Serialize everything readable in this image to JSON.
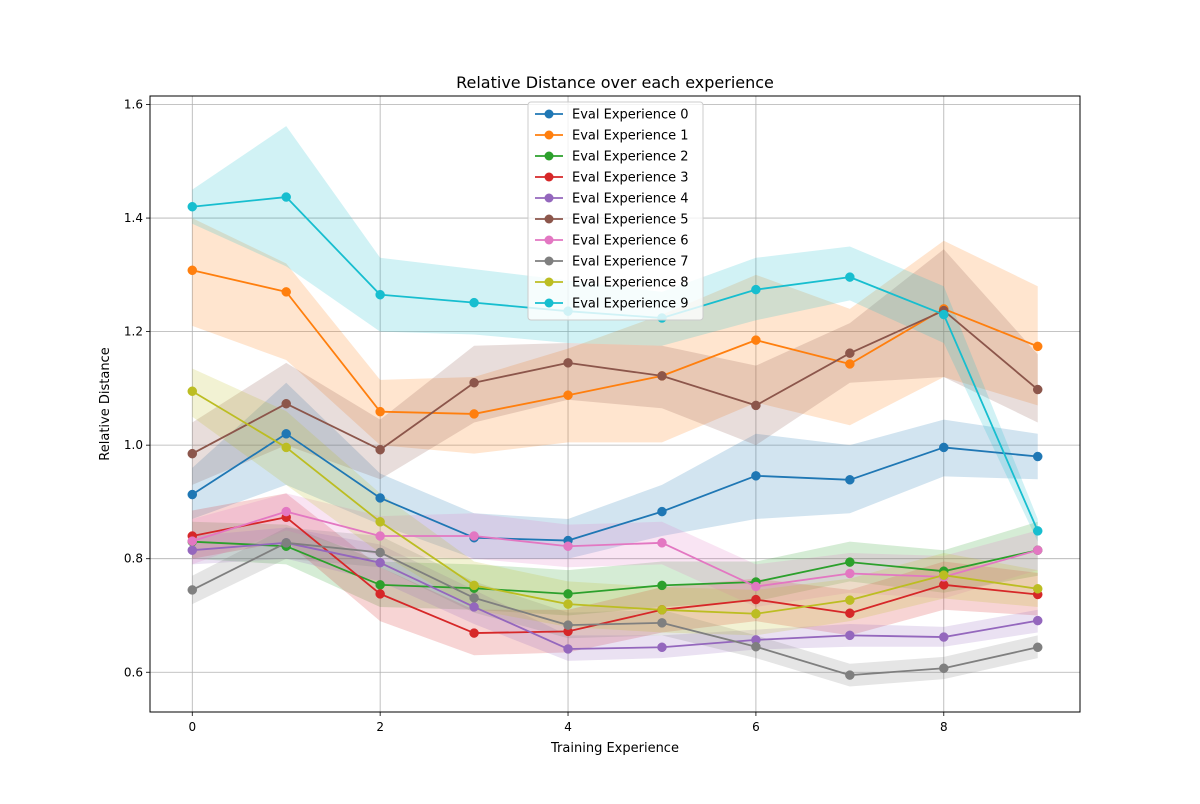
{
  "chart_data": {
    "type": "line",
    "title": "Relative Distance over each experience",
    "xlabel": "Training Experience",
    "ylabel": "Relative Distance",
    "xlim": [
      -0.45,
      9.45
    ],
    "ylim": [
      0.53,
      1.615
    ],
    "x_ticks": [
      0,
      2,
      4,
      6,
      8
    ],
    "y_ticks": [
      0.6,
      0.8,
      1.0,
      1.2,
      1.4,
      1.6
    ],
    "x_tick_labels": [
      "0",
      "2",
      "4",
      "6",
      "8"
    ],
    "y_tick_labels": [
      "0.6",
      "0.8",
      "1.0",
      "1.2",
      "1.4",
      "1.6"
    ],
    "grid": true,
    "legend_position": "top-center",
    "x": [
      0,
      1,
      2,
      3,
      4,
      5,
      6,
      7,
      8,
      9
    ],
    "series": [
      {
        "name": "Eval Experience 0",
        "color": "#1f77b4",
        "values": [
          0.913,
          1.02,
          0.907,
          0.837,
          0.832,
          0.883,
          0.946,
          0.939,
          0.996,
          0.98
        ],
        "lower": [
          0.87,
          0.93,
          0.86,
          0.8,
          0.8,
          0.84,
          0.87,
          0.88,
          0.945,
          0.94
        ],
        "upper": [
          0.96,
          1.11,
          0.95,
          0.88,
          0.87,
          0.93,
          1.02,
          1.0,
          1.045,
          1.02
        ]
      },
      {
        "name": "Eval Experience 1",
        "color": "#ff7f0e",
        "values": [
          1.308,
          1.27,
          1.059,
          1.055,
          1.088,
          1.122,
          1.185,
          1.143,
          1.24,
          1.174
        ],
        "lower": [
          1.21,
          1.15,
          1.0,
          0.985,
          1.005,
          1.005,
          1.075,
          1.035,
          1.12,
          1.07
        ],
        "upper": [
          1.4,
          1.32,
          1.115,
          1.12,
          1.17,
          1.23,
          1.3,
          1.24,
          1.36,
          1.28
        ]
      },
      {
        "name": "Eval Experience 2",
        "color": "#2ca02c",
        "values": [
          0.83,
          0.822,
          0.754,
          0.748,
          0.738,
          0.753,
          0.759,
          0.794,
          0.778,
          0.815
        ],
        "lower": [
          0.8,
          0.79,
          0.715,
          0.71,
          0.7,
          0.715,
          0.725,
          0.76,
          0.74,
          0.77
        ],
        "upper": [
          0.865,
          0.86,
          0.795,
          0.79,
          0.78,
          0.795,
          0.795,
          0.83,
          0.815,
          0.865
        ]
      },
      {
        "name": "Eval Experience 3",
        "color": "#d62728",
        "values": [
          0.84,
          0.873,
          0.738,
          0.669,
          0.672,
          0.71,
          0.728,
          0.704,
          0.754,
          0.737
        ],
        "lower": [
          0.8,
          0.83,
          0.69,
          0.63,
          0.635,
          0.67,
          0.69,
          0.665,
          0.71,
          0.7
        ],
        "upper": [
          0.885,
          0.915,
          0.785,
          0.71,
          0.71,
          0.75,
          0.765,
          0.745,
          0.795,
          0.775
        ]
      },
      {
        "name": "Eval Experience 4",
        "color": "#9467bd",
        "values": [
          0.815,
          0.828,
          0.793,
          0.715,
          0.641,
          0.644,
          0.657,
          0.665,
          0.662,
          0.691
        ],
        "lower": [
          0.79,
          0.8,
          0.76,
          0.685,
          0.62,
          0.625,
          0.64,
          0.645,
          0.645,
          0.67
        ],
        "upper": [
          0.84,
          0.855,
          0.825,
          0.745,
          0.665,
          0.665,
          0.675,
          0.685,
          0.68,
          0.71
        ]
      },
      {
        "name": "Eval Experience 5",
        "color": "#8c564b",
        "values": [
          0.985,
          1.073,
          0.992,
          1.11,
          1.145,
          1.122,
          1.07,
          1.162,
          1.237,
          1.098
        ],
        "lower": [
          0.93,
          1.0,
          0.94,
          1.04,
          1.08,
          1.065,
          1.0,
          1.11,
          1.12,
          1.04
        ],
        "upper": [
          1.04,
          1.145,
          1.045,
          1.175,
          1.18,
          1.175,
          1.14,
          1.215,
          1.345,
          1.16
        ]
      },
      {
        "name": "Eval Experience 6",
        "color": "#e377c2",
        "values": [
          0.831,
          0.883,
          0.84,
          0.84,
          0.822,
          0.828,
          0.751,
          0.774,
          0.768,
          0.815
        ],
        "lower": [
          0.79,
          0.85,
          0.805,
          0.8,
          0.785,
          0.79,
          0.715,
          0.74,
          0.73,
          0.78
        ],
        "upper": [
          0.87,
          0.915,
          0.875,
          0.88,
          0.86,
          0.865,
          0.79,
          0.81,
          0.805,
          0.85
        ]
      },
      {
        "name": "Eval Experience 7",
        "color": "#7f7f7f",
        "values": [
          0.745,
          0.828,
          0.811,
          0.731,
          0.683,
          0.687,
          0.645,
          0.595,
          0.607,
          0.644
        ],
        "lower": [
          0.72,
          0.8,
          0.785,
          0.705,
          0.66,
          0.665,
          0.625,
          0.575,
          0.588,
          0.625
        ],
        "upper": [
          0.77,
          0.855,
          0.84,
          0.76,
          0.705,
          0.71,
          0.665,
          0.615,
          0.627,
          0.665
        ]
      },
      {
        "name": "Eval Experience 8",
        "color": "#bcbd22",
        "values": [
          1.095,
          0.996,
          0.865,
          0.753,
          0.72,
          0.71,
          0.703,
          0.727,
          0.771,
          0.747
        ],
        "lower": [
          1.05,
          0.93,
          0.81,
          0.71,
          0.68,
          0.67,
          0.665,
          0.69,
          0.73,
          0.715
        ],
        "upper": [
          1.135,
          1.06,
          0.915,
          0.795,
          0.76,
          0.75,
          0.745,
          0.765,
          0.81,
          0.78
        ]
      },
      {
        "name": "Eval Experience 9",
        "color": "#17becf",
        "values": [
          1.42,
          1.437,
          1.265,
          1.251,
          1.236,
          1.224,
          1.274,
          1.296,
          1.23,
          0.849
        ],
        "lower": [
          1.39,
          1.315,
          1.2,
          1.195,
          1.18,
          1.175,
          1.22,
          1.255,
          1.18,
          0.83
        ],
        "upper": [
          1.45,
          1.562,
          1.33,
          1.31,
          1.29,
          1.27,
          1.33,
          1.35,
          1.28,
          0.87
        ]
      }
    ]
  }
}
